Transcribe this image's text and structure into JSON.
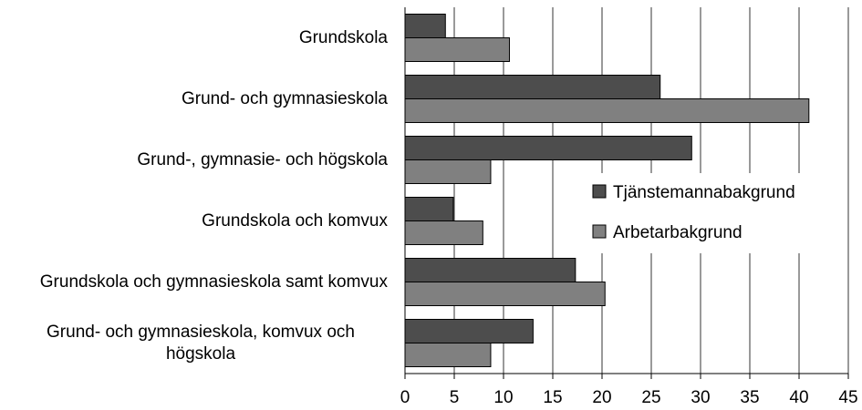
{
  "chart_data": {
    "type": "hbar",
    "categories": [
      "Grundskola",
      "Grund- och gymnasieskola",
      "Grund-, gymnasie- och högskola",
      "Grundskola och komvux",
      "Grundskola och gymnasieskola samt komvux",
      "Grund- och gymnasieskola, komvux och högskola"
    ],
    "series": [
      {
        "name": "Tjänstemannabakgrund",
        "color": "#4d4d4d",
        "values": [
          4.1,
          25.9,
          29.1,
          4.9,
          17.3,
          13.0
        ]
      },
      {
        "name": "Arbetarbakgrund",
        "color": "#808080",
        "values": [
          10.6,
          41.0,
          8.7,
          7.9,
          20.3,
          8.7
        ]
      }
    ],
    "xlim": [
      0,
      45
    ],
    "xticks": [
      0,
      5,
      10,
      15,
      20,
      25,
      30,
      35,
      40,
      45
    ],
    "grid": true,
    "legend": "right"
  }
}
